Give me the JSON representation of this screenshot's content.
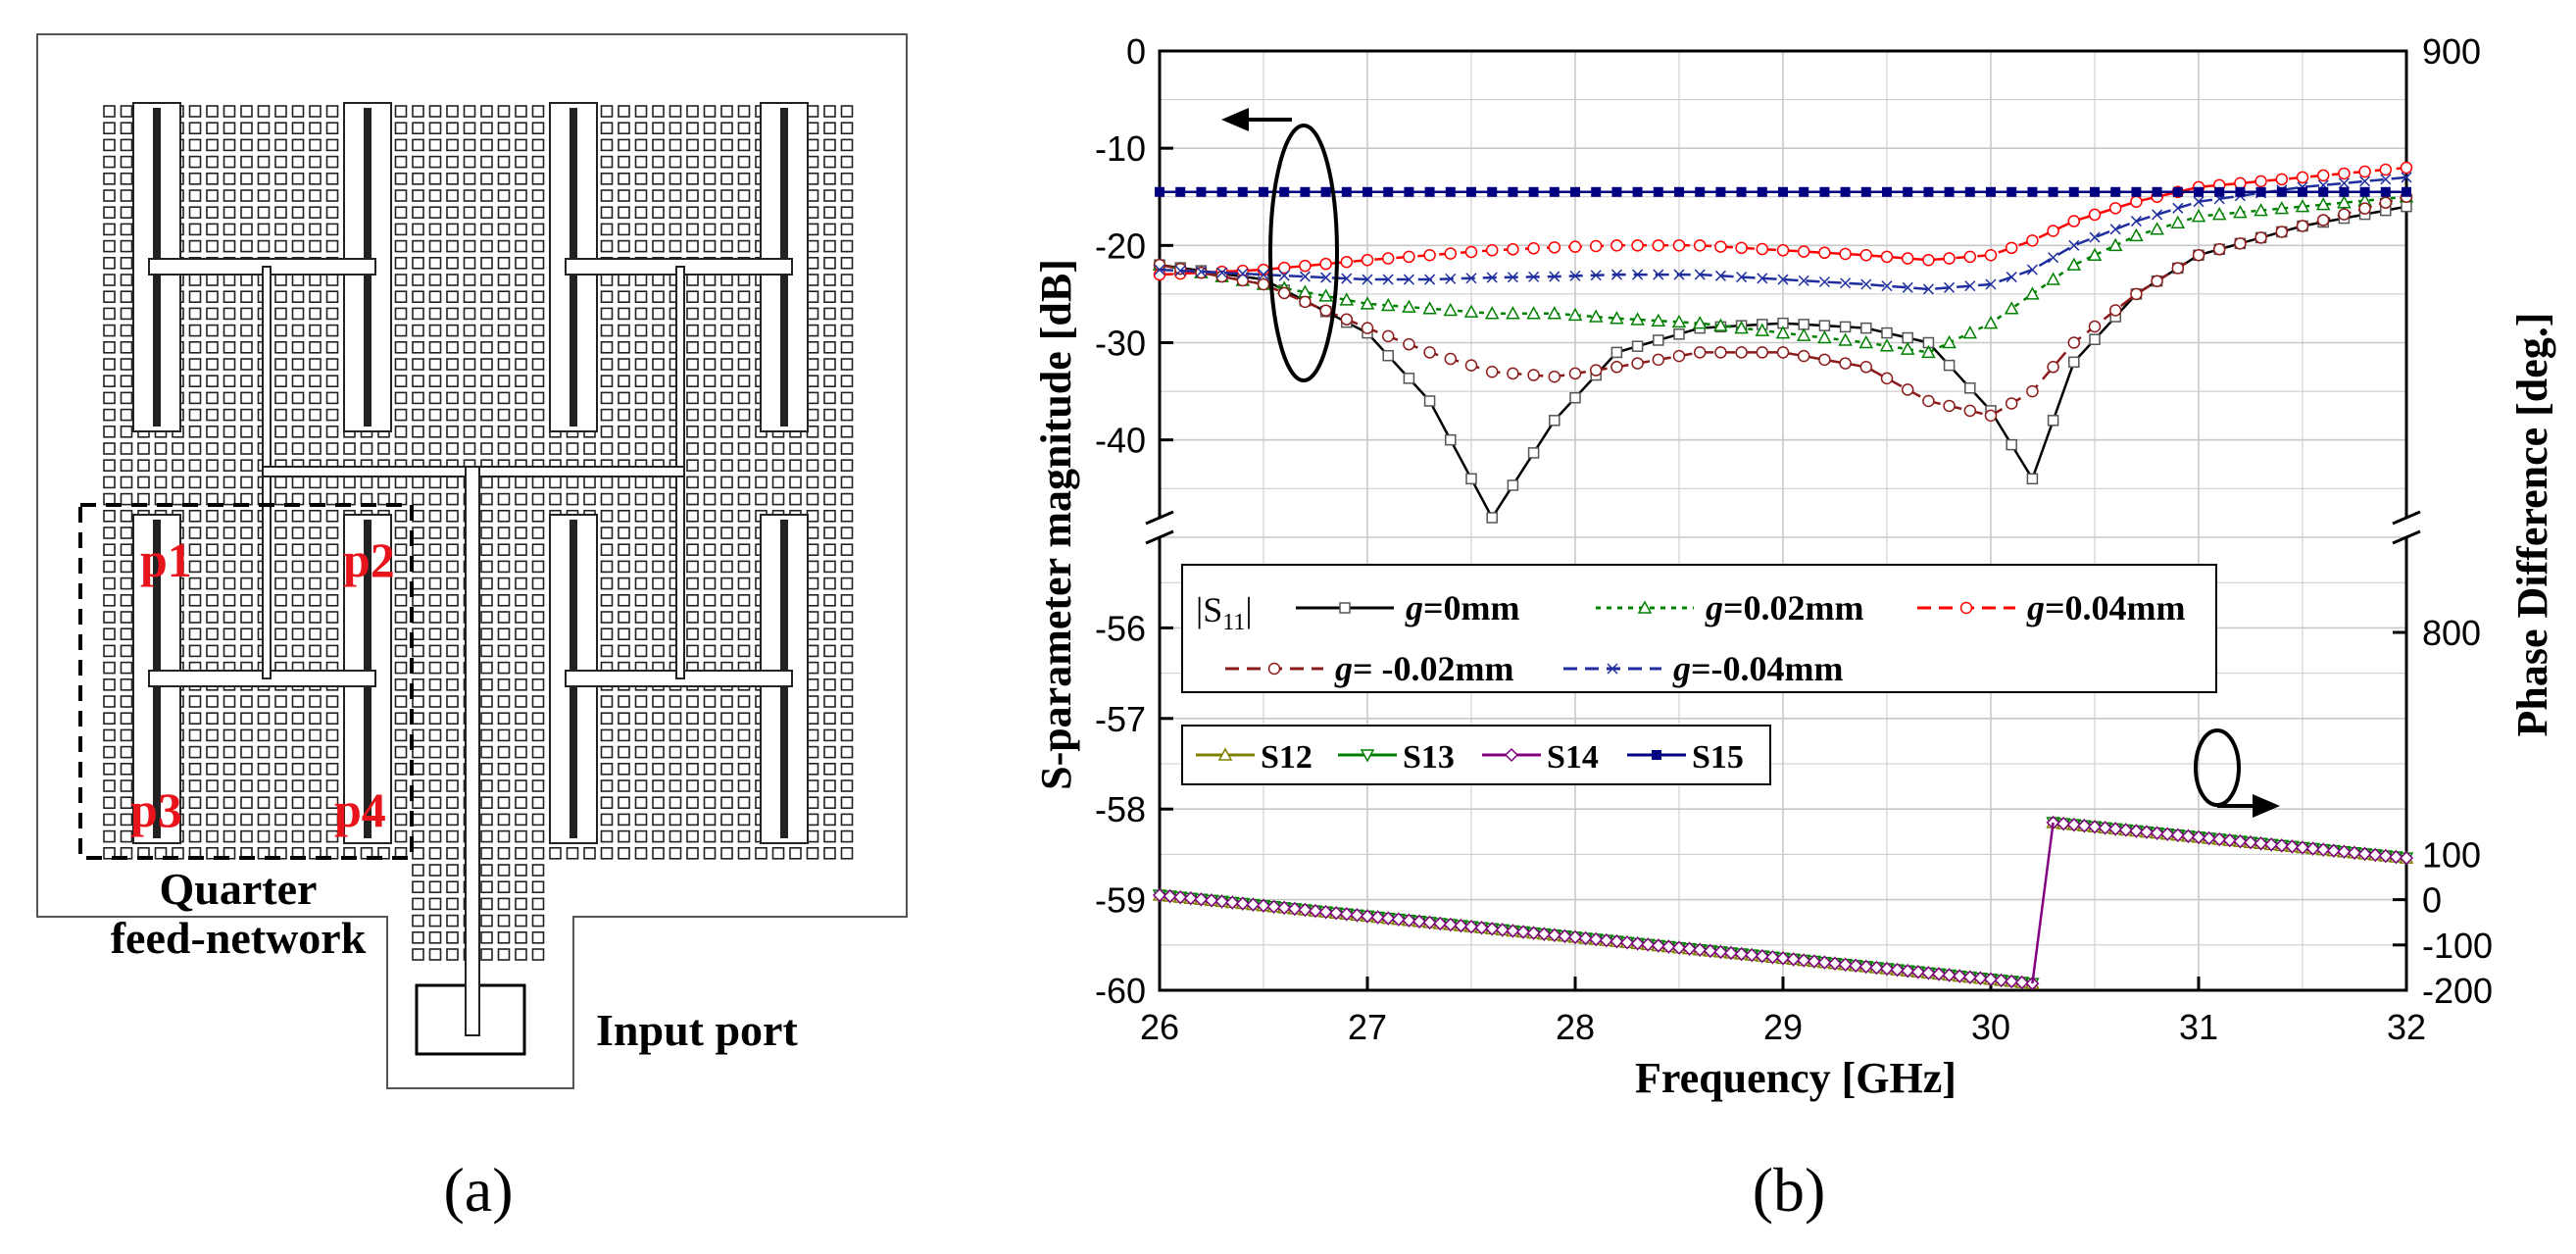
{
  "panel_a": {
    "caption": "(a)",
    "port_labels": [
      "p1",
      "p2",
      "p3",
      "p4"
    ],
    "quarter_label_line1": "Quarter",
    "quarter_label_line2": "feed-network",
    "input_port_label": "Input port",
    "label_color": "#e8141c"
  },
  "panel_b": {
    "caption": "(b)"
  },
  "chart_data": {
    "type": "line",
    "xlabel": "Frequency [GHz]",
    "ylabel_left": "S-parameter magnitude [dB]",
    "ylabel_right": "Phase Difference [deg.]",
    "x_ticks": [
      "26",
      "27",
      "28",
      "29",
      "30",
      "31",
      "32"
    ],
    "xlim": [
      26,
      32
    ],
    "upper_axis": {
      "ylim": [
        -48,
        0
      ],
      "ticks": [
        0,
        -10,
        -20,
        -30,
        -40
      ],
      "tick_labels": [
        "0",
        "-10",
        "-20",
        "-30",
        "-40"
      ]
    },
    "lower_axis": {
      "ylim": [
        -60,
        -55
      ],
      "ticks": [
        -56,
        -57,
        -58,
        -59,
        -60
      ],
      "tick_labels": [
        "-56",
        "-57",
        "-58",
        "-59",
        "-60"
      ]
    },
    "right_axis": {
      "ticks_upper": [
        900
      ],
      "tick_labels_upper": [
        "900"
      ],
      "ylim_lower": [
        -200,
        800
      ],
      "ticks_lower": [
        800,
        100,
        0,
        -100,
        -200
      ],
      "tick_labels_lower": [
        "800",
        "100",
        "0",
        "-100",
        "-200"
      ]
    },
    "x": [
      26.0,
      26.5,
      27.0,
      27.3,
      27.6,
      27.9,
      28.2,
      28.6,
      29.0,
      29.4,
      29.7,
      30.0,
      30.2,
      30.4,
      30.7,
      31.0,
      31.5,
      32.0
    ],
    "series": [
      {
        "name": "g=0mm",
        "color": "#000000",
        "marker": "square",
        "dash": "",
        "values": [
          -22,
          -23.5,
          -29,
          -36,
          -48,
          -38,
          -31,
          -28.5,
          -28,
          -28.5,
          -30,
          -37,
          -44,
          -32,
          -25,
          -21,
          -18,
          -16
        ]
      },
      {
        "name": "g=0.02mm",
        "color": "#008000",
        "marker": "triangle-up",
        "dash": "5,6",
        "values": [
          -22,
          -24,
          -26,
          -26.5,
          -27,
          -27,
          -27.5,
          -28,
          -29,
          -30,
          -31,
          -28,
          -25,
          -22,
          -19,
          -17,
          -16,
          -15
        ]
      },
      {
        "name": "g=0.04mm",
        "color": "#ff0000",
        "marker": "circle",
        "dash": "14,8",
        "values": [
          -23,
          -22.5,
          -21.5,
          -21,
          -20.5,
          -20.2,
          -20,
          -20,
          -20.5,
          -21,
          -21.5,
          -21,
          -19.5,
          -17.5,
          -15.5,
          -14,
          -13,
          -12
        ]
      },
      {
        "name": "g= -0.02mm",
        "color": "#8b1a1a",
        "marker": "circle",
        "dash": "14,8",
        "values": [
          -22,
          -24,
          -28.5,
          -31,
          -33,
          -33.5,
          -32.5,
          -31,
          -31,
          -32.5,
          -36,
          -37.5,
          -35,
          -30,
          -25,
          -21,
          -18,
          -15
        ]
      },
      {
        "name": "g=-0.04mm",
        "color": "#1f2e9e",
        "marker": "x",
        "dash": "14,8",
        "values": [
          -22.5,
          -23,
          -23.5,
          -23.5,
          -23.3,
          -23.2,
          -23,
          -23,
          -23.5,
          -24,
          -24.5,
          -24,
          -22.5,
          -20,
          -17.5,
          -15.5,
          -14,
          -13
        ]
      },
      {
        "name": "S15",
        "color": "#000080",
        "marker": "filled-square",
        "dash": "",
        "values": [
          -14.5,
          -14.5,
          -14.5,
          -14.5,
          -14.5,
          -14.5,
          -14.5,
          -14.5,
          -14.5,
          -14.5,
          -14.5,
          -14.5,
          -14.5,
          -14.5,
          -14.5,
          -14.5,
          -14.5,
          -14.5
        ]
      }
    ],
    "phase_series": {
      "names": [
        "S12",
        "S13",
        "S14"
      ],
      "colors": [
        "#808000",
        "#008000",
        "#800080"
      ],
      "segment1": {
        "x": [
          26.0,
          30.2
        ],
        "phase_deg": [
          10,
          -185
        ]
      },
      "segment2": {
        "x": [
          30.3,
          32.0
        ],
        "phase_deg": [
          170,
          92
        ]
      }
    },
    "legend_s11": {
      "prefix": "|S",
      "prefix_sub": "11",
      "prefix_end": "|",
      "items": [
        {
          "g": "g",
          "rest": "=0mm"
        },
        {
          "g": "g",
          "rest": "=0.02mm"
        },
        {
          "g": "g",
          "rest": "=0.04mm"
        },
        {
          "g": "g",
          "rest": "= -0.02mm"
        },
        {
          "g": "g",
          "rest": "=-0.04mm"
        }
      ]
    },
    "legend_phase": [
      "S12",
      "S13",
      "S14",
      "S15"
    ]
  }
}
